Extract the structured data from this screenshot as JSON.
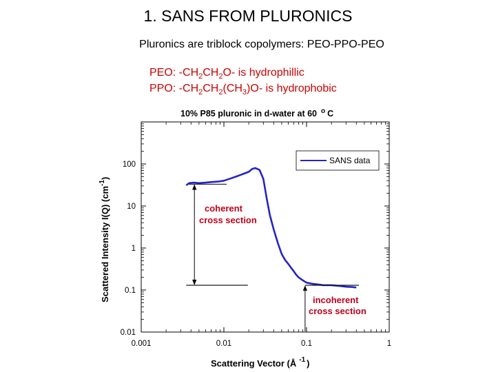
{
  "slide": {
    "title": "1. SANS FROM PLURONICS",
    "subtitle": "Pluronics are triblock copolymers: PEO-PPO-PEO",
    "peo": {
      "a": "PEO: -CH",
      "b": "2",
      "c": "CH",
      "d": "2",
      "e": "O- is hydrophillic"
    },
    "ppo": {
      "a": "PPO: -CH",
      "b": "2",
      "c": "CH",
      "d": "2",
      "e": "(CH",
      "f": "3",
      "g": ")O- is hydrophobic"
    }
  },
  "chart_data": {
    "type": "line",
    "title": "10% P85 pluronic in d-water at 60",
    "title_unit": "°C",
    "title_unit_sup": "o",
    "title_unit_main": "C",
    "xlabel": "Scattering Vector (Å",
    "xlabel_sup": "-1",
    "xlabel_end": ")",
    "ylabel": "Scattered Intensity I(Q) (cm",
    "ylabel_sup": "-1",
    "ylabel_end": ")",
    "x_scale": "log",
    "y_scale": "log",
    "xlim": [
      0.001,
      1
    ],
    "ylim": [
      0.01,
      1000
    ],
    "x_ticks": [
      {
        "value": 0.001,
        "label": "0.001"
      },
      {
        "value": 0.01,
        "label": "0.01"
      },
      {
        "value": 0.1,
        "label": "0.1"
      },
      {
        "value": 1,
        "label": "1"
      }
    ],
    "y_ticks": [
      {
        "value": 0.01,
        "label": "0.01"
      },
      {
        "value": 0.1,
        "label": "0.1"
      },
      {
        "value": 1,
        "label": "1"
      },
      {
        "value": 10,
        "label": "10"
      },
      {
        "value": 100,
        "label": "100"
      }
    ],
    "series": [
      {
        "name": "SANS data",
        "color": "#2323c8",
        "x": [
          0.0035,
          0.0038,
          0.0043,
          0.005,
          0.006,
          0.007,
          0.0085,
          0.01,
          0.012,
          0.014,
          0.016,
          0.018,
          0.02,
          0.022,
          0.024,
          0.027,
          0.03,
          0.033,
          0.036,
          0.04,
          0.045,
          0.05,
          0.055,
          0.06,
          0.065,
          0.07,
          0.075,
          0.08,
          0.09,
          0.1,
          0.12,
          0.14,
          0.16,
          0.2,
          0.25,
          0.3,
          0.35,
          0.4
        ],
        "y": [
          31,
          35,
          36,
          35,
          36,
          37,
          38,
          40,
          45,
          50,
          55,
          60,
          65,
          76,
          80,
          72,
          44,
          15,
          6,
          2.8,
          1.3,
          0.72,
          0.52,
          0.42,
          0.34,
          0.28,
          0.23,
          0.2,
          0.17,
          0.15,
          0.14,
          0.135,
          0.13,
          0.13,
          0.125,
          0.12,
          0.118,
          0.115
        ]
      }
    ],
    "legend": {
      "position": "top-right",
      "label": "SANS data"
    },
    "annotations": {
      "coherent_line1": "coherent",
      "coherent_line2": "cross section",
      "incoherent_line1": "incoherent",
      "incoherent_line2": "cross section",
      "coherent_top": 33,
      "coherent_bottom": 0.13,
      "incoherent_level": 0.13
    }
  }
}
